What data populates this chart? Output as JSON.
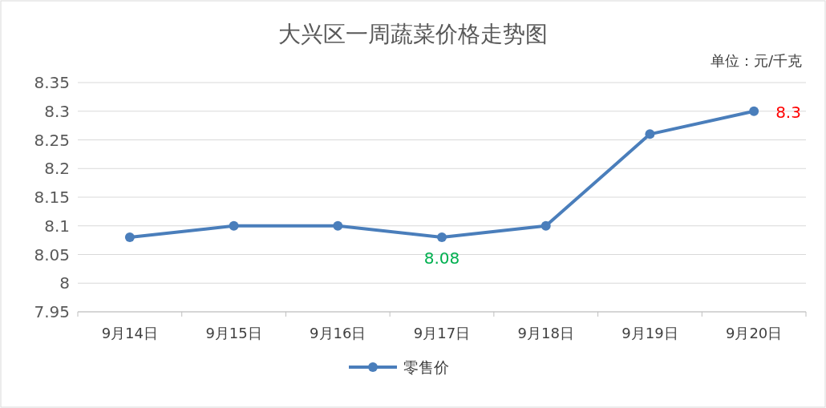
{
  "chart_data": {
    "type": "line",
    "title": "大兴区一周蔬菜价格走势图",
    "subtitle": "单位：元/千克",
    "categories": [
      "9月14日",
      "9月15日",
      "9月16日",
      "9月17日",
      "9月18日",
      "9月19日",
      "9月20日"
    ],
    "series": [
      {
        "name": "零售价",
        "color": "#4a7ebb",
        "values": [
          8.08,
          8.1,
          8.1,
          8.08,
          8.1,
          8.26,
          8.3
        ],
        "value_labels": [
          null,
          null,
          null,
          "8.08",
          null,
          null,
          "8.3"
        ]
      }
    ],
    "ylim": [
      7.95,
      8.35
    ],
    "yticks": [
      {
        "value": 7.95,
        "label": "7.95"
      },
      {
        "value": 8,
        "label": "8"
      },
      {
        "value": 8.05,
        "label": "8.05"
      },
      {
        "value": 8.1,
        "label": "8.1"
      },
      {
        "value": 8.15,
        "label": "8.15"
      },
      {
        "value": 8.2,
        "label": "8.2"
      },
      {
        "value": 8.25,
        "label": "8.25"
      },
      {
        "value": 8.3,
        "label": "8.3"
      },
      {
        "value": 8.35,
        "label": "8.35"
      }
    ],
    "grid": "y",
    "legend": "bottom",
    "marker": "circle"
  }
}
